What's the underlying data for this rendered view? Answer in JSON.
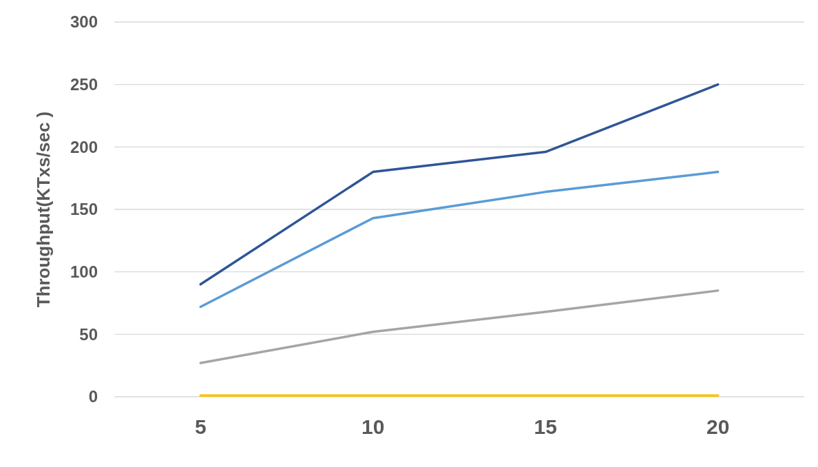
{
  "chart_data": {
    "type": "line",
    "ylabel": "Throughput(KTxs/sec )",
    "categories": [
      "5",
      "10",
      "15",
      "20"
    ],
    "ylim": [
      0,
      300
    ],
    "yticks": [
      0,
      50,
      100,
      150,
      200,
      250,
      300
    ],
    "grid": "y",
    "marker": "none",
    "line_style": "solid",
    "series": [
      {
        "color": "#2f5597",
        "values": [
          90,
          180,
          196,
          250
        ]
      },
      {
        "color": "#5b9bd5",
        "values": [
          72,
          143,
          164,
          180
        ]
      },
      {
        "color": "#a5a5a5",
        "values": [
          27,
          52,
          68,
          85
        ]
      },
      {
        "color": "#ffc000",
        "values": [
          1,
          1,
          1,
          1
        ]
      }
    ]
  }
}
